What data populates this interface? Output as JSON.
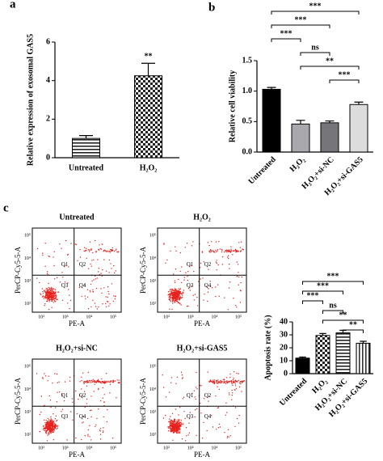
{
  "panel_labels": [
    "a",
    "b",
    "c"
  ],
  "chart_data": [
    {
      "type": "bar",
      "ylabel": "Relative expression of exosomal GAS5",
      "categories": [
        "Untreated",
        "H₂O₂"
      ],
      "values": [
        1.0,
        4.25
      ],
      "errors": [
        0.15,
        0.65
      ],
      "patterns": [
        "hlines",
        "checker"
      ],
      "colors": [
        "#000000",
        "#000000"
      ],
      "ylim": [
        0,
        6
      ],
      "yticks": [
        0,
        2,
        4,
        6
      ],
      "x_label_rotation": 0,
      "annotations": [
        {
          "index": 1,
          "text": "**"
        }
      ]
    },
    {
      "type": "bar",
      "ylabel": "Relative cell viability",
      "categories": [
        "Untreated",
        "H₂O₂",
        "H₂O₂+si-NC",
        "H₂O₂+si-GAS5"
      ],
      "values": [
        1.03,
        0.46,
        0.48,
        0.78
      ],
      "errors": [
        0.03,
        0.06,
        0.03,
        0.04
      ],
      "patterns": [
        "solid",
        "solid",
        "solid",
        "solid"
      ],
      "colors": [
        "#000000",
        "#a9a9ad",
        "#76767a",
        "#dcdcdc"
      ],
      "ylim": [
        0,
        1.5
      ],
      "yticks": [
        {
          "value": 0,
          "label": "0.0"
        },
        {
          "value": 0.5,
          "label": "0.5"
        },
        {
          "value": 1,
          "label": "1.0"
        },
        {
          "value": 1.5,
          "label": "1.5"
        }
      ],
      "x_label_rotation": 45,
      "comparisons": [
        {
          "from": 0,
          "to": 3,
          "label": "***"
        },
        {
          "from": 0,
          "to": 2,
          "label": "***"
        },
        {
          "from": 0,
          "to": 1,
          "label": "***"
        },
        {
          "from": 1,
          "to": 2,
          "label": "ns"
        },
        {
          "from": 1,
          "to": 3,
          "label": "**"
        },
        {
          "from": 2,
          "to": 3,
          "label": "***"
        }
      ]
    },
    {
      "type": "bar",
      "ylabel": "Apoptosis rate (%)",
      "categories": [
        "Untreated",
        "H₂O₂",
        "H₂O₂+si-NC",
        "H₂O₂+si-GAS5"
      ],
      "values": [
        12,
        29.5,
        31.5,
        23.5
      ],
      "errors": [
        0.8,
        1.5,
        2,
        1.5
      ],
      "patterns": [
        "solid",
        "checker",
        "hlines",
        "vlines"
      ],
      "colors": [
        "#000000",
        "#444444",
        "#444444",
        "#444444"
      ],
      "ylim": [
        0,
        40
      ],
      "yticks": [
        0,
        10,
        20,
        30,
        40
      ],
      "x_label_rotation": 45,
      "comparisons": [
        {
          "from": 0,
          "to": 3,
          "label": "***"
        },
        {
          "from": 0,
          "to": 2,
          "label": "***"
        },
        {
          "from": 0,
          "to": 1,
          "label": "***"
        },
        {
          "from": 1,
          "to": 2,
          "label": "ns"
        },
        {
          "from": 1,
          "to": 3,
          "label": "**"
        },
        {
          "from": 2,
          "to": 3,
          "label": "**"
        }
      ]
    }
  ],
  "flow_plots": {
    "xlabel": "PE-A",
    "ylabel": "PerCP-Cy5-5-A",
    "ticks": [
      "10²",
      "10³",
      "10⁴",
      "10⁵"
    ],
    "quadrants": [
      "Q1",
      "Q2",
      "Q3",
      "Q4"
    ],
    "titles": [
      "Untreated",
      "H₂O₂",
      "H₂O₂+si-NC",
      "H₂O₂+si-GAS5"
    ]
  }
}
